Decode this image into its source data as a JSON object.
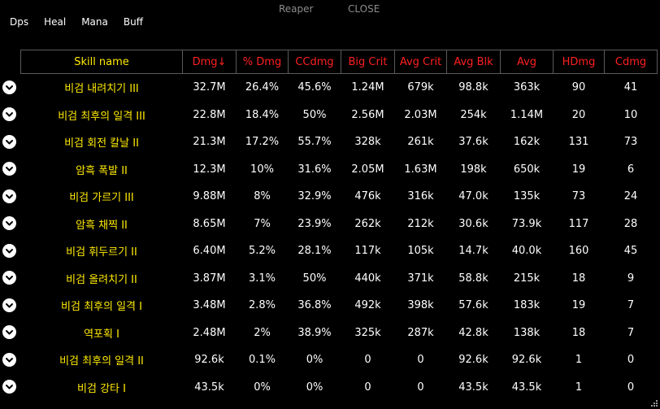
{
  "title": {
    "name": "Reaper",
    "close": "CLOSE"
  },
  "tabs": [
    "Dps",
    "Heal",
    "Mana",
    "Buff"
  ],
  "columns": [
    "Skill name",
    "Dmg↓",
    "% Dmg",
    "CCdmg",
    "Big Crit",
    "Avg Crit",
    "Avg Blk",
    "Avg",
    "HDmg",
    "Cdmg"
  ],
  "rows": [
    [
      "비검 내려치기 III",
      "32.7M",
      "26.4%",
      "45.6%",
      "1.24M",
      "679k",
      "98.8k",
      "363k",
      "90",
      "41"
    ],
    [
      "비검 최후의 일격 III",
      "22.8M",
      "18.4%",
      "50%",
      "2.56M",
      "2.03M",
      "254k",
      "1.14M",
      "20",
      "10"
    ],
    [
      "비검 회전 칼날 II",
      "21.3M",
      "17.2%",
      "55.7%",
      "328k",
      "261k",
      "37.6k",
      "162k",
      "131",
      "73"
    ],
    [
      "암흑 폭발 II",
      "12.3M",
      "10%",
      "31.6%",
      "2.05M",
      "1.63M",
      "198k",
      "650k",
      "19",
      "6"
    ],
    [
      "비검 가르기 III",
      "9.88M",
      "8%",
      "32.9%",
      "476k",
      "316k",
      "47.0k",
      "135k",
      "73",
      "24"
    ],
    [
      "암흑 채찍 II",
      "8.65M",
      "7%",
      "23.9%",
      "262k",
      "212k",
      "30.6k",
      "73.9k",
      "117",
      "28"
    ],
    [
      "비검 휘두르기 II",
      "6.40M",
      "5.2%",
      "28.1%",
      "117k",
      "105k",
      "14.7k",
      "40.0k",
      "160",
      "45"
    ],
    [
      "비검 올려치기 II",
      "3.87M",
      "3.1%",
      "50%",
      "440k",
      "371k",
      "58.8k",
      "215k",
      "18",
      "9"
    ],
    [
      "비검 최후의 일격 I",
      "3.48M",
      "2.8%",
      "36.8%",
      "492k",
      "398k",
      "57.6k",
      "183k",
      "19",
      "7"
    ],
    [
      "역포획 I",
      "2.48M",
      "2%",
      "38.9%",
      "325k",
      "287k",
      "42.8k",
      "138k",
      "18",
      "7"
    ],
    [
      "비검 최후의 일격 II",
      "92.6k",
      "0.1%",
      "0%",
      "0",
      "0",
      "92.6k",
      "92.6k",
      "1",
      "0"
    ],
    [
      "비검 강타 I",
      "43.5k",
      "0%",
      "0%",
      "0",
      "0",
      "43.5k",
      "43.5k",
      "1",
      "0"
    ]
  ],
  "icons": {
    "row_toggle": "chevron-down-icon",
    "resize": "resize-grip-icon"
  }
}
